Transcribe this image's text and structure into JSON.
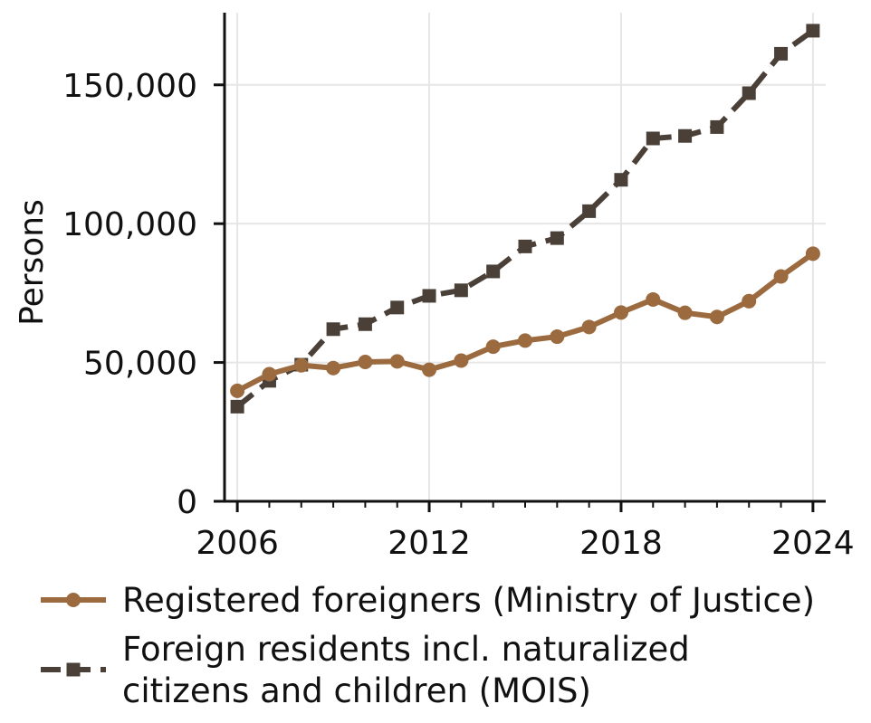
{
  "chart_data": {
    "type": "line",
    "title": "",
    "xlabel": "",
    "ylabel": "Persons",
    "x": [
      2006,
      2007,
      2008,
      2009,
      2010,
      2011,
      2012,
      2013,
      2014,
      2015,
      2016,
      2017,
      2018,
      2019,
      2020,
      2021,
      2022,
      2023,
      2024
    ],
    "xticks": [
      2006,
      2012,
      2018,
      2024
    ],
    "xtick_labels": [
      "2006",
      "2012",
      "2018",
      "2024"
    ],
    "yticks": [
      0,
      50000,
      100000,
      150000
    ],
    "ytick_labels": [
      "0",
      "50,000",
      "100,000",
      "150,000"
    ],
    "xlim": [
      2005.6,
      2024.4
    ],
    "ylim": [
      0,
      176000
    ],
    "grid": true,
    "legend_position": "bottom",
    "series": [
      {
        "name": "Registered foreigners (Ministry of Justice)",
        "style": "solid",
        "marker": "circle",
        "color": "#9b6a3f",
        "values": [
          39800,
          45800,
          49000,
          48000,
          50200,
          50400,
          47400,
          50700,
          55700,
          57900,
          59300,
          62800,
          68000,
          72700,
          67900,
          66400,
          72100,
          81000,
          89200
        ]
      },
      {
        "name": "Foreign residents incl. naturalized citizens and children (MOIS)",
        "legend_lines": [
          "Foreign residents incl. naturalized",
          "citizens and children (MOIS)"
        ],
        "style": "dashed",
        "marker": "square",
        "color": "#4a4038",
        "values": [
          34100,
          43400,
          49200,
          62000,
          63800,
          69800,
          74000,
          76000,
          82800,
          91800,
          94800,
          104500,
          115800,
          130700,
          131600,
          134800,
          147000,
          161200,
          169500
        ]
      }
    ]
  }
}
